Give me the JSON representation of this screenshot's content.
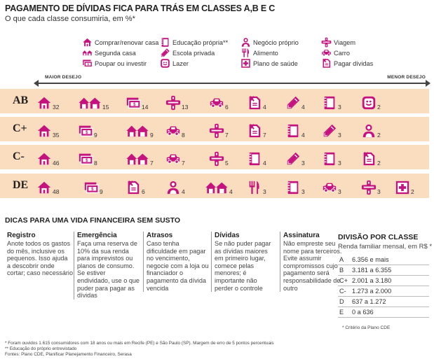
{
  "title": "PAGAMENTO DE DÍVIDAS FICA PARA TRÁS EM CLASSES A,B E C",
  "subtitle": "O que cada classe consumiria, em %*",
  "colors": {
    "accent": "#c4127e",
    "row_band": "#fadcbf"
  },
  "legend": [
    {
      "key": "house",
      "label": "Comprar/renovar casa",
      "icon": "house-icon"
    },
    {
      "key": "second_home",
      "label": "Segunda casa",
      "icon": "two-houses-icon"
    },
    {
      "key": "savings",
      "label": "Poupar ou investir",
      "icon": "money-icon"
    },
    {
      "key": "education",
      "label": "Educação própria**",
      "icon": "notebook-icon"
    },
    {
      "key": "private_school",
      "label": "Escola privada",
      "icon": "pencil-icon"
    },
    {
      "key": "leisure",
      "label": "Lazer",
      "icon": "smiley-icon"
    },
    {
      "key": "business",
      "label": "Negócio próprio",
      "icon": "person-icon"
    },
    {
      "key": "food",
      "label": "Alimento",
      "icon": "fork-knife-icon"
    },
    {
      "key": "health",
      "label": "Plano de saúde",
      "icon": "medical-cross-icon"
    },
    {
      "key": "travel",
      "label": "Viagem",
      "icon": "airplane-icon"
    },
    {
      "key": "car",
      "label": "Carro",
      "icon": "car-icon"
    },
    {
      "key": "debts",
      "label": "Pagar dívidas",
      "icon": "bill-icon"
    }
  ],
  "axis": {
    "left_label": "MAIOR DESEJO",
    "right_label": "MENOR DESEJO"
  },
  "chart_data": {
    "type": "table",
    "title": "PAGAMENTO DE DÍVIDAS FICA PARA TRÁS EM CLASSES A,B E C",
    "subtitle": "O que cada classe consumiria, em %*",
    "unit": "%",
    "rows": [
      {
        "class": "AB",
        "items": [
          {
            "key": "house",
            "value": 32
          },
          {
            "key": "second_home",
            "value": 15
          },
          {
            "key": "savings",
            "value": 14
          },
          {
            "key": "travel",
            "value": 13
          },
          {
            "key": "car",
            "value": 6
          },
          {
            "key": "debts",
            "value": 4
          },
          {
            "key": "private_school",
            "value": 4
          },
          {
            "key": "education",
            "value": 3
          },
          {
            "key": "leisure",
            "value": 2
          }
        ]
      },
      {
        "class": "C+",
        "items": [
          {
            "key": "house",
            "value": 35
          },
          {
            "key": "savings",
            "value": 9
          },
          {
            "key": "second_home",
            "value": 9
          },
          {
            "key": "car",
            "value": 8
          },
          {
            "key": "travel",
            "value": 7
          },
          {
            "key": "debts",
            "value": 7
          },
          {
            "key": "education",
            "value": 4
          },
          {
            "key": "private_school",
            "value": 3
          },
          {
            "key": "business",
            "value": 2
          }
        ]
      },
      {
        "class": "C-",
        "items": [
          {
            "key": "house",
            "value": 46
          },
          {
            "key": "savings",
            "value": 8
          },
          {
            "key": "second_home",
            "value": 7
          },
          {
            "key": "car",
            "value": 7
          },
          {
            "key": "travel",
            "value": 5
          },
          {
            "key": "education",
            "value": 4
          },
          {
            "key": "private_school",
            "value": 3
          },
          {
            "key": "education",
            "value": 3
          },
          {
            "key": "debts",
            "value": 2
          }
        ]
      },
      {
        "class": "DE",
        "items": [
          {
            "key": "house",
            "value": 48
          },
          {
            "key": "savings",
            "value": 9
          },
          {
            "key": "debts",
            "value": 6
          },
          {
            "key": "business",
            "value": 4
          },
          {
            "key": "second_home",
            "value": 4
          },
          {
            "key": "food",
            "value": 3
          },
          {
            "key": "education",
            "value": 3
          },
          {
            "key": "car",
            "value": 3
          },
          {
            "key": "travel",
            "value": 3
          },
          {
            "key": "health",
            "value": 2
          }
        ]
      }
    ]
  },
  "tips": {
    "title": "DICAS PARA UMA VIDA FINANCEIRA SEM SUSTO",
    "items": [
      {
        "head": "Registro",
        "body": "Anote todos os gastos do mês, inclusive os pequenos. Isso ajuda a descobrir onde cortar; caso necessário"
      },
      {
        "head": "Emergência",
        "body": "Faça uma reserva de 10% da sua renda para imprevistos ou planos de consumo. Se estiver endividado, use o que puder para pagar as dívidas"
      },
      {
        "head": "Atrasos",
        "body": "Caso tenha dificuldade em pagar no vencimento, negocie com a loja ou financiador o pagamento da dívida vencida"
      },
      {
        "head": "Dívidas",
        "body": "Se não puder pagar as dívidas maiores em primeiro lugar, comece pelas menores; é importante não perder o controle"
      },
      {
        "head": "Assinatura",
        "body": "Não empreste seu nome para terceiros. Evite assumir compromissos cujo pagamento será responsabilidade de outro"
      }
    ]
  },
  "division": {
    "title": "DIVISÃO POR CLASSE",
    "subtitle": "Renda familiar mensal, em R$ *",
    "rows": [
      {
        "cls": "A",
        "range": "6.356 e mais"
      },
      {
        "cls": "B",
        "range": "3.181 a 6.355"
      },
      {
        "cls": "C+",
        "range": "2.001 a 3.180"
      },
      {
        "cls": "C-",
        "range": "1.273 a 2.000"
      },
      {
        "cls": "D",
        "range": "637 a 1.272"
      },
      {
        "cls": "E",
        "range": "0 a 636"
      }
    ],
    "note": "* Critério da Plano CDE"
  },
  "footnotes": [
    "* Foram ouvidos 1.615 consumidores com 18 anos ou mais em Recife (PE) e São Paulo (SP). Margem de erro de 5 pontos percentuais",
    "** Educação do próprio entrevistado",
    "Fontes: Plano CDE, Planiﬁcar Planejamento Financeiro, Serasa"
  ]
}
